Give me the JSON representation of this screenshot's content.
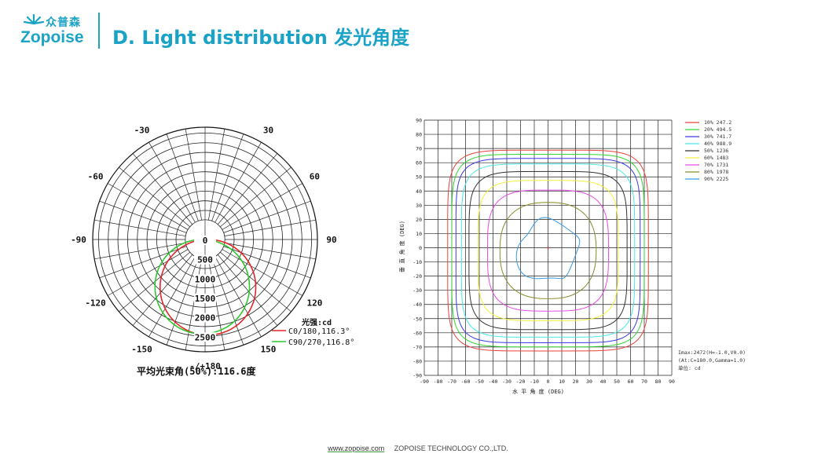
{
  "header": {
    "logo_cn": "众普森",
    "logo_en": "Zopoise",
    "title": "D. Light distribution 发光角度"
  },
  "chart_data": [
    {
      "type": "polar",
      "angle_labels": [
        {
          "label": "-/+180",
          "angle": 180
        },
        {
          "label": "150",
          "angle": 150
        },
        {
          "label": "-150",
          "angle": -150
        },
        {
          "label": "120",
          "angle": 120
        },
        {
          "label": "-120",
          "angle": -120
        },
        {
          "label": "90",
          "angle": 90
        },
        {
          "label": "-90",
          "angle": -90
        },
        {
          "label": "60",
          "angle": 60
        },
        {
          "label": "-60",
          "angle": -60
        },
        {
          "label": "30",
          "angle": 30
        },
        {
          "label": "-30",
          "angle": -30
        }
      ],
      "radial_ticks": [
        0,
        500,
        1000,
        1500,
        2000,
        2500
      ],
      "rmax": 2900,
      "unit_label": "光强:cd",
      "series": [
        {
          "name": "C0/180,116.3°",
          "color": "#e0262a",
          "peak": 2470,
          "shift": 0.06
        },
        {
          "name": "C90/270,116.8°",
          "color": "#2ec82e",
          "peak": 2440,
          "shift": -0.06
        }
      ],
      "bottom_label": "平均光束角(50%):116.6度"
    },
    {
      "type": "isocandela",
      "xlim": [
        -90,
        90
      ],
      "ylim": [
        -90,
        90
      ],
      "x_ticks": [
        -90,
        -80,
        -70,
        -60,
        -50,
        -40,
        -30,
        -20,
        -10,
        0,
        10,
        20,
        30,
        40,
        50,
        60,
        70,
        80,
        90
      ],
      "y_ticks": [
        90,
        80,
        70,
        60,
        50,
        40,
        30,
        20,
        10,
        0,
        -10,
        -20,
        -30,
        -40,
        -50,
        -60,
        -70,
        -80,
        -90
      ],
      "xlabel": "水 平 角 度 (DEG)",
      "ylabel": "垂 直 角 度 (DEG)",
      "contours": [
        {
          "label": "10%",
          "value": 247.2,
          "color": "#e8433a",
          "extent": 73,
          "n": 6
        },
        {
          "label": "20%",
          "value": 494.5,
          "color": "#33d633",
          "extent": 70,
          "n": 6
        },
        {
          "label": "30%",
          "value": 741.7,
          "color": "#3a3ae6",
          "extent": 67,
          "n": 6
        },
        {
          "label": "40%",
          "value": 988.9,
          "color": "#49e8ea",
          "extent": 63,
          "n": 5.5
        },
        {
          "label": "50%",
          "value": 1236,
          "color": "#333333",
          "extent": 57.5,
          "n": 5
        },
        {
          "label": "60%",
          "value": 1483,
          "color": "#f2f23a",
          "extent": 51,
          "n": 4.5
        },
        {
          "label": "70%",
          "value": 1731,
          "color": "#e84ae8",
          "extent": 44,
          "n": 3.5
        },
        {
          "label": "80%",
          "value": 1978,
          "color": "#8a8a2a",
          "extent": 35,
          "n": 2.5
        },
        {
          "label": "90%",
          "value": 2225,
          "color": "#3a9ae8",
          "extent": 22,
          "n": 2
        }
      ],
      "info_lines": [
        "Imax:2472(H=-1.0,V0.0)",
        "(At:C=180.0,Gamma=1.0)",
        "单位: cd"
      ]
    }
  ],
  "footer": {
    "website": "www.zopoise.com",
    "company": "ZOPOISE TECHNOLOGY CO.,LTD."
  }
}
